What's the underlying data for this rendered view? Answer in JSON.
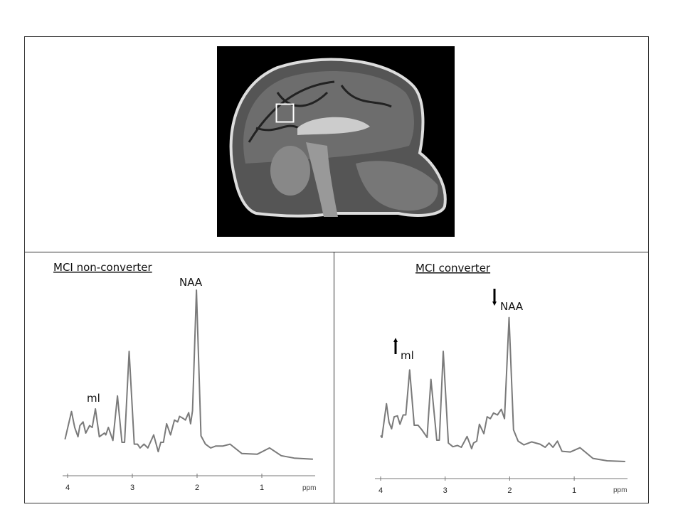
{
  "figure": {
    "mri": {
      "label": "sagittal T1 MRI with voxel box",
      "voxel_marker": "white-square"
    },
    "colors": {
      "spectrum": "#7a7a7a",
      "border": "#333333",
      "arrow": "#000000"
    }
  },
  "chart_data": [
    {
      "type": "line",
      "title": "MCI non-converter",
      "xlabel": "ppm",
      "ylabel": "",
      "x_reversed": true,
      "xlim": [
        4.05,
        0.2
      ],
      "xticks": [
        "4",
        "3",
        "2",
        "1"
      ],
      "grid": false,
      "annotations": [
        {
          "text": "ml",
          "ppm": 3.57
        },
        {
          "text": "NAA",
          "ppm": 2.01
        }
      ],
      "series": [
        {
          "x": [
            4.04,
            3.94,
            3.89,
            3.84,
            3.81,
            3.76,
            3.72,
            3.66,
            3.62,
            3.57,
            3.51,
            3.43,
            3.41,
            3.37,
            3.3,
            3.23,
            3.16,
            3.12,
            3.05,
            2.97,
            2.92,
            2.88,
            2.82,
            2.76,
            2.67,
            2.6,
            2.56,
            2.52,
            2.47,
            2.41,
            2.35,
            2.3,
            2.27,
            2.22,
            2.18,
            2.13,
            2.1,
            2.07,
            2.01,
            1.94,
            1.87,
            1.79,
            1.71,
            1.6,
            1.49,
            1.31,
            1.07,
            0.88,
            0.7,
            0.5,
            0.21
          ],
          "y": [
            19.6,
            34.6,
            26,
            21,
            27,
            29,
            23,
            27,
            26,
            36,
            21,
            23,
            22,
            26,
            19,
            43,
            18,
            18,
            67,
            17,
            17,
            15,
            17,
            15,
            22,
            13,
            18,
            18,
            28,
            22,
            30,
            29,
            32,
            31,
            30,
            34,
            28,
            35,
            100,
            21.5,
            17,
            15,
            16,
            16,
            17,
            12,
            11.6,
            15,
            10.8,
            9.5,
            8.9
          ]
        }
      ]
    },
    {
      "type": "line",
      "title": "MCI converter",
      "xlabel": "ppm",
      "ylabel": "",
      "x_reversed": true,
      "xlim": [
        4.05,
        0.2
      ],
      "xticks": [
        "4",
        "3",
        "2",
        "1"
      ],
      "grid": false,
      "annotations": [
        {
          "text": "ml",
          "ppm": 3.55,
          "arrow": "up"
        },
        {
          "text": "NAA",
          "ppm": 2.01,
          "arrow": "down"
        }
      ],
      "series": [
        {
          "x": [
            4.0,
            3.98,
            3.91,
            3.87,
            3.83,
            3.79,
            3.74,
            3.7,
            3.65,
            3.61,
            3.55,
            3.48,
            3.42,
            3.36,
            3.28,
            3.22,
            3.13,
            3.09,
            3.03,
            2.95,
            2.88,
            2.81,
            2.75,
            2.66,
            2.59,
            2.56,
            2.51,
            2.47,
            2.4,
            2.35,
            2.3,
            2.25,
            2.19,
            2.13,
            2.08,
            2.01,
            1.94,
            1.87,
            1.78,
            1.66,
            1.53,
            1.45,
            1.39,
            1.33,
            1.26,
            1.19,
            1.06,
            0.91,
            0.71,
            0.49,
            0.21
          ],
          "y": [
            23,
            22,
            40,
            30,
            26.6,
            33,
            33.5,
            29,
            34,
            34,
            58,
            28.5,
            28.5,
            26,
            22,
            53,
            20.5,
            20.5,
            68,
            19,
            17,
            17.7,
            16.7,
            22.5,
            16,
            19,
            20,
            29,
            24,
            33,
            32,
            35,
            34,
            37,
            32,
            86,
            26,
            20,
            18,
            19.6,
            18.4,
            16.7,
            19,
            16.7,
            20,
            14.6,
            14.2,
            16.5,
            10.8,
            9.5,
            9.1
          ]
        }
      ]
    }
  ]
}
